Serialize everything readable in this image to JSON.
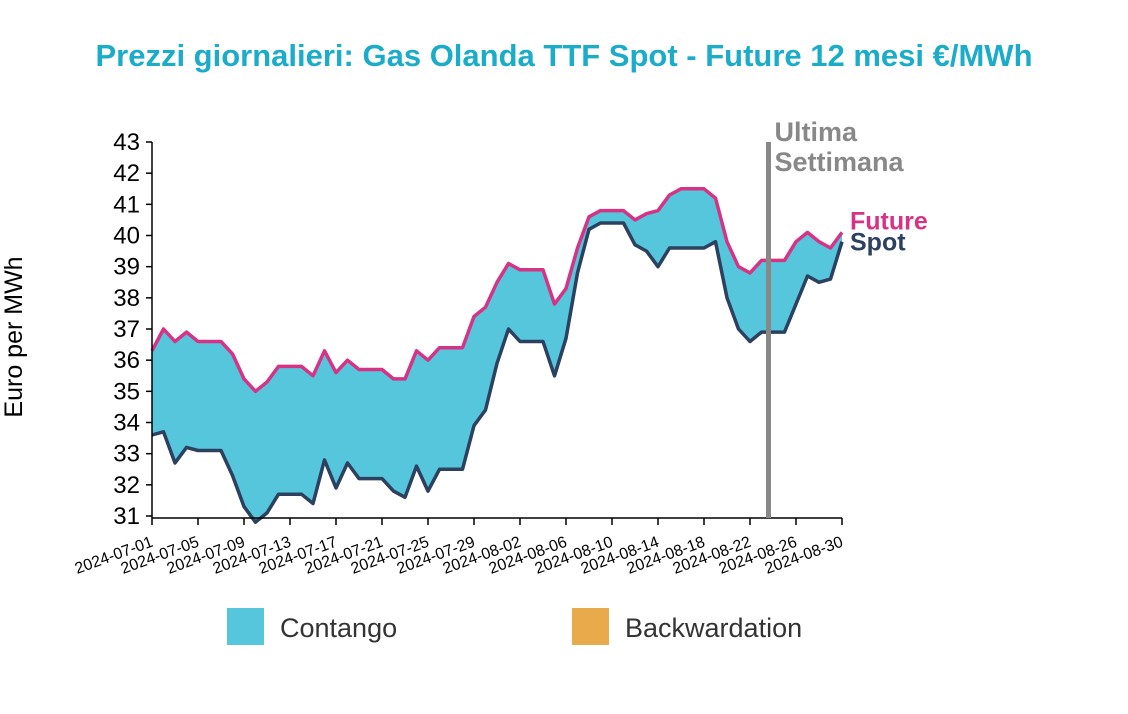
{
  "chart_data": {
    "type": "area",
    "title": "Prezzi giornalieri: Gas Olanda TTF Spot - Future 12 mesi €/MWh",
    "ylabel": "Euro per MWh",
    "xlabel": "",
    "ylim": [
      31,
      43
    ],
    "yticks": [
      31,
      32,
      33,
      34,
      35,
      36,
      37,
      38,
      39,
      40,
      41,
      42,
      43
    ],
    "xticks": [
      "2024-07-01",
      "2024-07-05",
      "2024-07-09",
      "2024-07-13",
      "2024-07-17",
      "2024-07-21",
      "2024-07-25",
      "2024-07-29",
      "2024-08-02",
      "2024-08-06",
      "2024-08-10",
      "2024-08-14",
      "2024-08-18",
      "2024-08-22",
      "2024-08-26",
      "2024-08-30"
    ],
    "x": [
      "2024-07-01",
      "2024-07-02",
      "2024-07-03",
      "2024-07-04",
      "2024-07-05",
      "2024-07-06",
      "2024-07-07",
      "2024-07-08",
      "2024-07-09",
      "2024-07-10",
      "2024-07-11",
      "2024-07-12",
      "2024-07-13",
      "2024-07-14",
      "2024-07-15",
      "2024-07-16",
      "2024-07-17",
      "2024-07-18",
      "2024-07-19",
      "2024-07-20",
      "2024-07-21",
      "2024-07-22",
      "2024-07-23",
      "2024-07-24",
      "2024-07-25",
      "2024-07-26",
      "2024-07-27",
      "2024-07-28",
      "2024-07-29",
      "2024-07-30",
      "2024-07-31",
      "2024-08-01",
      "2024-08-02",
      "2024-08-03",
      "2024-08-04",
      "2024-08-05",
      "2024-08-06",
      "2024-08-07",
      "2024-08-08",
      "2024-08-09",
      "2024-08-10",
      "2024-08-11",
      "2024-08-12",
      "2024-08-13",
      "2024-08-14",
      "2024-08-15",
      "2024-08-16",
      "2024-08-17",
      "2024-08-18",
      "2024-08-19",
      "2024-08-20",
      "2024-08-21",
      "2024-08-22",
      "2024-08-23",
      "2024-08-24",
      "2024-08-25",
      "2024-08-26",
      "2024-08-27",
      "2024-08-28",
      "2024-08-29",
      "2024-08-30"
    ],
    "series": [
      {
        "name": "Future",
        "color": "#D63384",
        "values": [
          36.3,
          37.0,
          36.6,
          36.9,
          36.6,
          36.6,
          36.6,
          36.2,
          35.4,
          35.0,
          35.3,
          35.8,
          35.8,
          35.8,
          35.5,
          36.3,
          35.6,
          36.0,
          35.7,
          35.7,
          35.7,
          35.4,
          35.4,
          36.3,
          36.0,
          36.4,
          36.4,
          36.4,
          37.4,
          37.7,
          38.5,
          39.1,
          38.9,
          38.9,
          38.9,
          37.8,
          38.3,
          39.6,
          40.6,
          40.8,
          40.8,
          40.8,
          40.5,
          40.7,
          40.8,
          41.3,
          41.5,
          41.5,
          41.5,
          41.2,
          39.8,
          39.0,
          38.8,
          39.2,
          39.2,
          39.2,
          39.8,
          40.1,
          39.8,
          39.6,
          40.1
        ]
      },
      {
        "name": "Spot",
        "color": "#2C4160",
        "values": [
          33.6,
          33.7,
          32.7,
          33.2,
          33.1,
          33.1,
          33.1,
          32.3,
          31.3,
          30.8,
          31.1,
          31.7,
          31.7,
          31.7,
          31.4,
          32.8,
          31.9,
          32.7,
          32.2,
          32.2,
          32.2,
          31.8,
          31.6,
          32.6,
          31.8,
          32.5,
          32.5,
          32.5,
          33.9,
          34.4,
          35.9,
          37.0,
          36.6,
          36.6,
          36.6,
          35.5,
          36.7,
          38.8,
          40.2,
          40.4,
          40.4,
          40.4,
          39.7,
          39.5,
          39.0,
          39.6,
          39.6,
          39.6,
          39.6,
          39.8,
          38.0,
          37.0,
          36.6,
          36.9,
          36.9,
          36.9,
          37.8,
          38.7,
          38.5,
          38.6,
          39.8
        ]
      }
    ],
    "fill_colors": {
      "contango": "#56C6DC",
      "backwardation": "#E9AA4B"
    },
    "legend": [
      {
        "label": "Contango",
        "color": "#56C6DC"
      },
      {
        "label": "Backwardation",
        "color": "#E9AA4B"
      }
    ],
    "legend_position": "bottom",
    "annotation": {
      "line1": "Ultima",
      "line2": "Settimana",
      "x": "2024-08-23",
      "color": "#888888"
    },
    "grid": false
  }
}
